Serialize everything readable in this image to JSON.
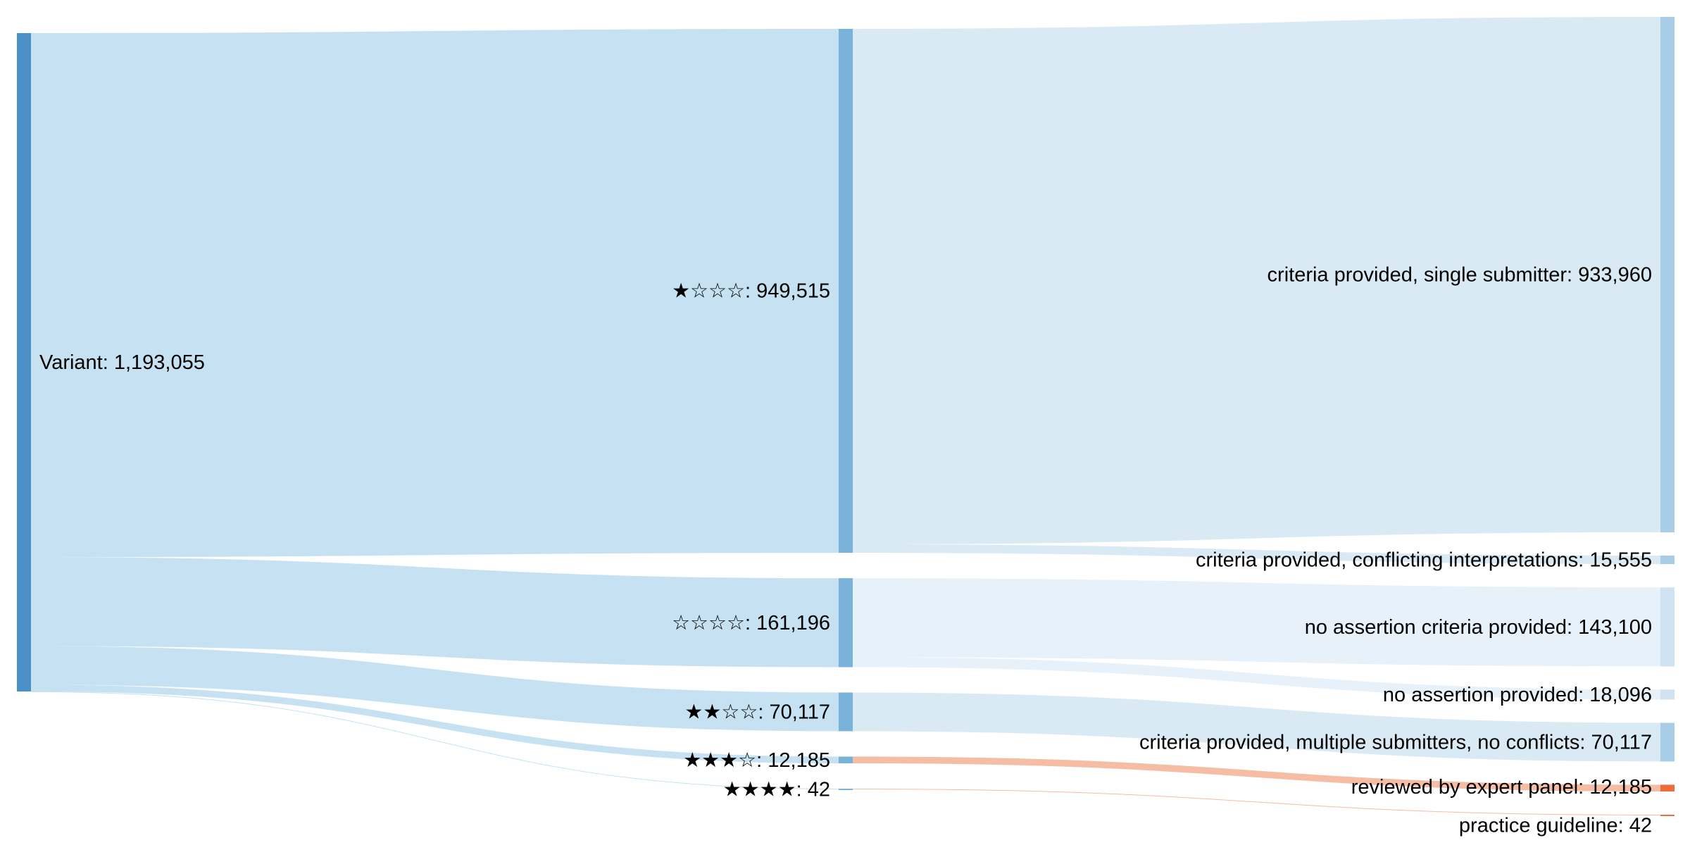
{
  "chart_data": {
    "type": "sankey",
    "nodes": [
      {
        "id": "variant",
        "label": "Variant: 1,193,055",
        "name": "Variant",
        "value": 1193055,
        "column": 0,
        "color": "#4a90c4"
      },
      {
        "id": "star1",
        "label": "★☆☆☆: 949,515",
        "name": "★☆☆☆",
        "value": 949515,
        "column": 1,
        "color": "#7ab3d9"
      },
      {
        "id": "star0",
        "label": "☆☆☆☆: 161,196",
        "name": "☆☆☆☆",
        "value": 161196,
        "column": 1,
        "color": "#7ab3d9"
      },
      {
        "id": "star2",
        "label": "★★☆☆: 70,117",
        "name": "★★☆☆",
        "value": 70117,
        "column": 1,
        "color": "#7ab3d9"
      },
      {
        "id": "star3",
        "label": "★★★☆: 12,185",
        "name": "★★★☆",
        "value": 12185,
        "column": 1,
        "color": "#7ab3d9"
      },
      {
        "id": "star4",
        "label": "★★★★: 42",
        "name": "★★★★",
        "value": 42,
        "column": 1,
        "color": "#7ab3d9"
      },
      {
        "id": "single",
        "label": "criteria provided, single submitter: 933,960",
        "name": "criteria provided, single submitter",
        "value": 933960,
        "column": 2,
        "color": "#a9cde6"
      },
      {
        "id": "conflicting",
        "label": "criteria provided, conflicting interpretations: 15,555",
        "name": "criteria provided, conflicting interpretations",
        "value": 15555,
        "column": 2,
        "color": "#a9cde6"
      },
      {
        "id": "no_criteria",
        "label": "no assertion criteria provided: 143,100",
        "name": "no assertion criteria provided",
        "value": 143100,
        "column": 2,
        "color": "#cfe2f2"
      },
      {
        "id": "no_assertion",
        "label": "no assertion provided: 18,096",
        "name": "no assertion provided",
        "value": 18096,
        "column": 2,
        "color": "#cfe2f2"
      },
      {
        "id": "multiple",
        "label": "criteria provided, multiple submitters, no conflicts: 70,117",
        "name": "criteria provided, multiple submitters, no conflicts",
        "value": 70117,
        "column": 2,
        "color": "#a9cde6"
      },
      {
        "id": "expert",
        "label": "reviewed by expert panel: 12,185",
        "name": "reviewed by expert panel",
        "value": 12185,
        "column": 2,
        "color": "#ee6b3b"
      },
      {
        "id": "guideline",
        "label": "practice guideline: 42",
        "name": "practice guideline",
        "value": 42,
        "column": 2,
        "color": "#ee6b3b"
      }
    ],
    "links": [
      {
        "source": "variant",
        "target": "star1",
        "value": 949515,
        "color": "#c3dff0"
      },
      {
        "source": "variant",
        "target": "star0",
        "value": 161196,
        "color": "#c3dff0"
      },
      {
        "source": "variant",
        "target": "star2",
        "value": 70117,
        "color": "#c3dff0"
      },
      {
        "source": "variant",
        "target": "star3",
        "value": 12185,
        "color": "#c3dff0"
      },
      {
        "source": "variant",
        "target": "star4",
        "value": 42,
        "color": "#c3dff0"
      },
      {
        "source": "star1",
        "target": "single",
        "value": 933960,
        "color": "#d8e9f4"
      },
      {
        "source": "star1",
        "target": "conflicting",
        "value": 15555,
        "color": "#d8e9f4"
      },
      {
        "source": "star0",
        "target": "no_criteria",
        "value": 143100,
        "color": "#e6f0f9"
      },
      {
        "source": "star0",
        "target": "no_assertion",
        "value": 18096,
        "color": "#e6f0f9"
      },
      {
        "source": "star2",
        "target": "multiple",
        "value": 70117,
        "color": "#d8e9f4"
      },
      {
        "source": "star3",
        "target": "expert",
        "value": 12185,
        "color": "#f5b9a0"
      },
      {
        "source": "star4",
        "target": "guideline",
        "value": 42,
        "color": "#f5b9a0"
      }
    ],
    "title": "",
    "legend": "none"
  }
}
